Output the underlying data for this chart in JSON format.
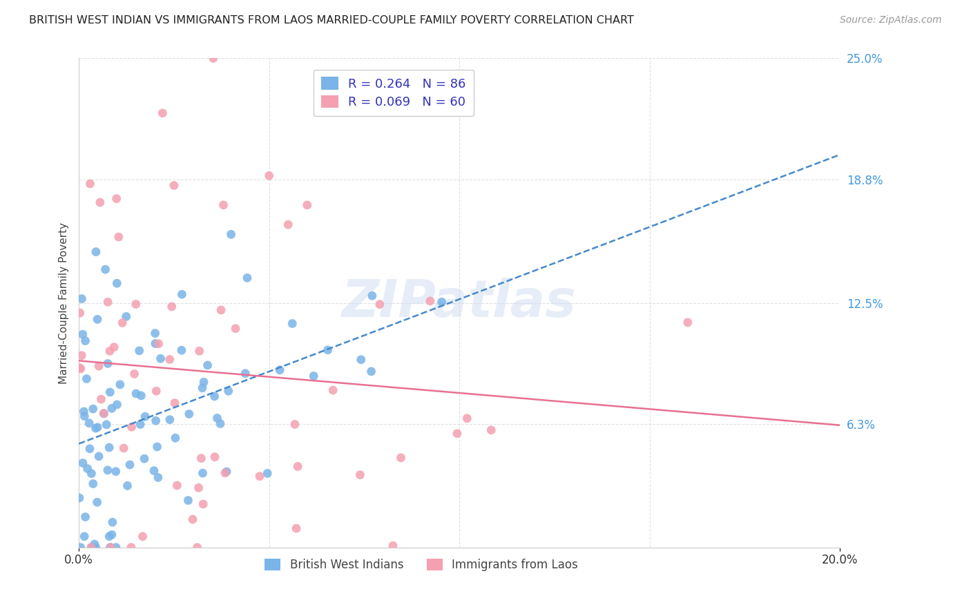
{
  "title": "BRITISH WEST INDIAN VS IMMIGRANTS FROM LAOS MARRIED-COUPLE FAMILY POVERTY CORRELATION CHART",
  "source": "Source: ZipAtlas.com",
  "ylabel": "Married-Couple Family Poverty",
  "xlim": [
    0.0,
    0.2
  ],
  "ylim": [
    0.0,
    0.25
  ],
  "ytick_labels_right": [
    "25.0%",
    "18.8%",
    "12.5%",
    "6.3%"
  ],
  "ytick_vals_right": [
    0.25,
    0.188,
    0.125,
    0.063
  ],
  "legend_entry1": "R = 0.264   N = 86",
  "legend_entry2": "R = 0.069   N = 60",
  "legend_label1": "British West Indians",
  "legend_label2": "Immigrants from Laos",
  "watermark": "ZIPatlas",
  "series1_color": "#7ab4e8",
  "series2_color": "#f4a0b0",
  "trendline1_color": "#4488cc",
  "trendline2_color": "#e87090",
  "background_color": "#ffffff",
  "grid_color": "#dddddd"
}
